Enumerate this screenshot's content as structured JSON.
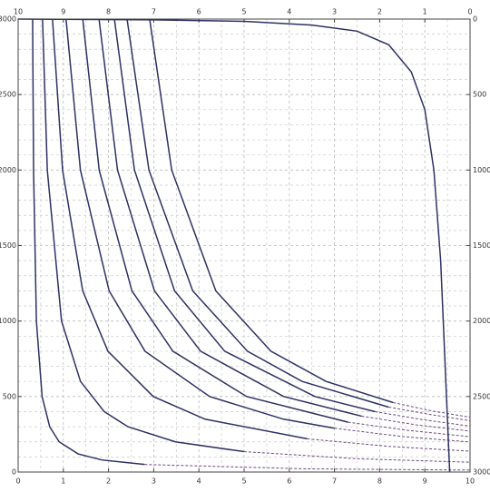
{
  "chart_data": {
    "type": "line",
    "xlim": [
      0,
      10
    ],
    "xticks": [
      0,
      1,
      2,
      3,
      4,
      5,
      6,
      7,
      8,
      9,
      10
    ],
    "x2lim": [
      10,
      0
    ],
    "x2ticks": [
      10,
      9,
      8,
      7,
      6,
      5,
      4,
      3,
      2,
      1,
      0
    ],
    "ylim": [
      0,
      3000
    ],
    "yticks": [
      0,
      500,
      1000,
      1500,
      2000,
      2500,
      3000
    ],
    "y2lim": [
      3000,
      0
    ],
    "y2ticks": [
      0,
      500,
      1000,
      1500,
      2000,
      2500,
      3000
    ],
    "grid": true,
    "grid_minor_divisions": {
      "x": 2,
      "y": 5
    },
    "series": [
      {
        "color": "#2e3163",
        "dashed": false,
        "x": [
          0.32,
          0.341,
          0.404,
          0.53,
          0.698,
          0.908,
          1.328,
          1.853,
          2.798
        ],
        "y": [
          3000,
          2000,
          1000,
          500,
          300,
          200,
          120,
          80,
          50
        ]
      },
      {
        "color": "#2e3163",
        "dashed": false,
        "x": [
          0.54,
          0.645,
          0.96,
          1.38,
          1.905,
          2.43,
          3.48,
          4.997
        ],
        "y": [
          3000,
          2000,
          1000,
          600,
          400,
          300,
          200,
          135
        ]
      },
      {
        "color": "#2e3163",
        "dashed": false,
        "x": [
          0.76,
          0.983,
          1.429,
          1.987,
          2.99,
          4.137,
          6.396
        ],
        "y": [
          3000,
          2000,
          1200,
          800,
          500,
          350,
          220
        ]
      },
      {
        "color": "#2e3163",
        "dashed": false,
        "x": [
          1.06,
          1.378,
          2.013,
          2.808,
          4.238,
          5.873,
          7.0
        ],
        "y": [
          3000,
          2000,
          1200,
          800,
          500,
          350,
          290
        ]
      },
      {
        "color": "#2e3163",
        "dashed": false,
        "x": [
          1.43,
          1.793,
          2.518,
          3.425,
          5.058,
          7.301
        ],
        "y": [
          3000,
          2000,
          1200,
          800,
          500,
          330
        ]
      },
      {
        "color": "#2e3163",
        "dashed": false,
        "x": [
          1.79,
          2.199,
          3.016,
          4.038,
          5.877,
          7.6
        ],
        "y": [
          3000,
          2000,
          1200,
          800,
          500,
          370
        ]
      },
      {
        "color": "#2e3163",
        "dashed": false,
        "x": [
          2.13,
          2.574,
          3.461,
          4.571,
          6.568,
          7.9
        ],
        "y": [
          3000,
          2000,
          1200,
          800,
          500,
          400
        ]
      },
      {
        "color": "#2e3163",
        "dashed": false,
        "x": [
          2.41,
          2.894,
          3.863,
          5.074,
          6.284,
          8.199
        ],
        "y": [
          3000,
          2000,
          1200,
          800,
          600,
          430
        ]
      },
      {
        "color": "#2e3163",
        "dashed": false,
        "x": [
          2.91,
          3.398,
          4.374,
          5.594,
          6.814,
          8.299
        ],
        "y": [
          3000,
          2000,
          1200,
          800,
          600,
          460
        ]
      },
      {
        "color": "#6a4a7a",
        "dashed": true,
        "x": [
          2.798,
          6.4,
          10
        ],
        "y": [
          50,
          21,
          13
        ]
      },
      {
        "color": "#6a4a7a",
        "dashed": true,
        "x": [
          4.997,
          7.5,
          10
        ],
        "y": [
          135,
          88,
          65
        ]
      },
      {
        "color": "#6a4a7a",
        "dashed": true,
        "x": [
          6.396,
          8.2,
          10
        ],
        "y": [
          220,
          170,
          138
        ]
      },
      {
        "color": "#6a4a7a",
        "dashed": true,
        "x": [
          7.0,
          8.5,
          10
        ],
        "y": [
          290,
          235,
          199
        ]
      },
      {
        "color": "#6a4a7a",
        "dashed": true,
        "x": [
          7.301,
          8.65,
          10
        ],
        "y": [
          330,
          275,
          234
        ]
      },
      {
        "color": "#6a4a7a",
        "dashed": true,
        "x": [
          7.6,
          8.8,
          10
        ],
        "y": [
          370,
          313,
          271
        ]
      },
      {
        "color": "#6a4a7a",
        "dashed": true,
        "x": [
          7.9,
          8.95,
          10
        ],
        "y": [
          400,
          347,
          304
        ]
      },
      {
        "color": "#6a4a7a",
        "dashed": true,
        "x": [
          8.199,
          9.1,
          10
        ],
        "y": [
          430,
          382,
          340
        ]
      },
      {
        "color": "#6a4a7a",
        "dashed": true,
        "x": [
          8.299,
          9.15,
          10
        ],
        "y": [
          460,
          405,
          363
        ]
      },
      {
        "color": "#2e3163",
        "dashed": false,
        "x": [
          0,
          3,
          5,
          6.5,
          7.5,
          8.2,
          8.7,
          9.0,
          9.2,
          9.35,
          9.45,
          9.55
        ],
        "y": [
          3000,
          2995,
          2985,
          2960,
          2920,
          2830,
          2650,
          2400,
          2000,
          1400,
          700,
          0
        ]
      }
    ]
  }
}
